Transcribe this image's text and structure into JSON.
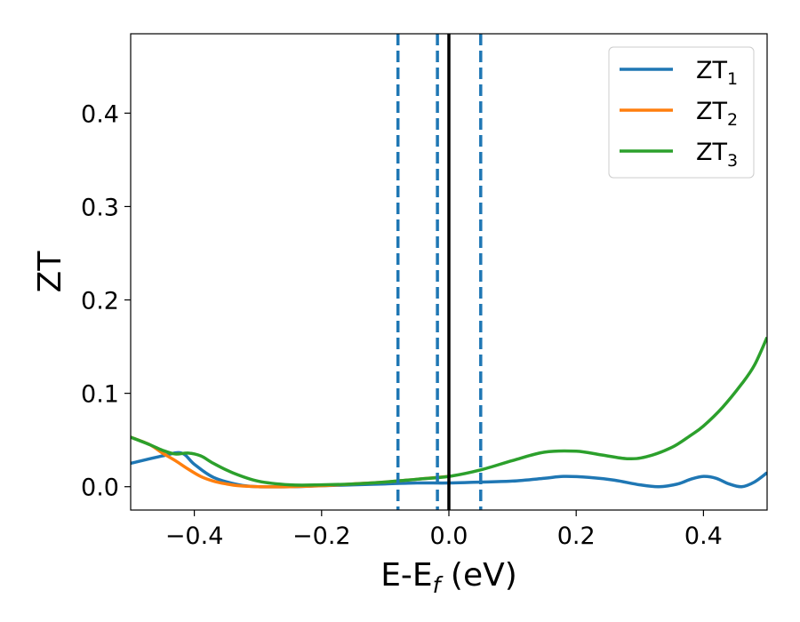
{
  "chart_data": {
    "type": "line",
    "xlabel": {
      "main": "E-E",
      "sub": "f",
      "suffix": " (eV)"
    },
    "ylabel": "ZT",
    "xlim": [
      -0.5,
      0.5
    ],
    "ylim": [
      -0.025,
      0.485
    ],
    "xticks": [
      -0.4,
      -0.2,
      0.0,
      0.2,
      0.4
    ],
    "xtick_labels": [
      "−0.4",
      "−0.2",
      "0.0",
      "0.2",
      "0.4"
    ],
    "yticks": [
      0.0,
      0.1,
      0.2,
      0.3,
      0.4
    ],
    "ytick_labels": [
      "0.0",
      "0.1",
      "0.2",
      "0.3",
      "0.4"
    ],
    "grid": false,
    "legend_position": "top-right",
    "vertical_lines": [
      {
        "x": -0.08,
        "style": "dashed",
        "color": "#1f77b4"
      },
      {
        "x": -0.018,
        "style": "dashed",
        "color": "#1f77b4"
      },
      {
        "x": 0.05,
        "style": "dashed",
        "color": "#1f77b4"
      },
      {
        "x": 0.0,
        "style": "solid",
        "color": "#000000"
      }
    ],
    "series": [
      {
        "name": "ZT",
        "sub": "1",
        "color": "#1f77b4",
        "x": [
          -0.5,
          -0.45,
          -0.42,
          -0.4,
          -0.37,
          -0.33,
          -0.3,
          -0.25,
          -0.2,
          -0.15,
          -0.1,
          -0.05,
          0.0,
          0.05,
          0.1,
          0.15,
          0.18,
          0.22,
          0.26,
          0.3,
          0.33,
          0.36,
          0.38,
          0.4,
          0.42,
          0.44,
          0.46,
          0.48,
          0.5
        ],
        "y": [
          0.025,
          0.033,
          0.036,
          0.024,
          0.01,
          0.002,
          0.0,
          0.0,
          0.001,
          0.002,
          0.003,
          0.004,
          0.004,
          0.005,
          0.006,
          0.009,
          0.011,
          0.01,
          0.007,
          0.002,
          0.0,
          0.003,
          0.008,
          0.011,
          0.009,
          0.003,
          0.0,
          0.005,
          0.015
        ]
      },
      {
        "name": "ZT",
        "sub": "2",
        "color": "#ff7f0e",
        "x": [
          -0.5,
          -0.47,
          -0.45,
          -0.43,
          -0.41,
          -0.39,
          -0.37,
          -0.35,
          -0.33,
          -0.3,
          -0.25,
          -0.2,
          -0.15,
          -0.1,
          -0.05,
          0.0
        ],
        "y": [
          0.053,
          0.045,
          0.036,
          0.028,
          0.019,
          0.011,
          0.006,
          0.003,
          0.001,
          0.0,
          0.0,
          0.001,
          0.003,
          0.005,
          0.008,
          0.011
        ]
      },
      {
        "name": "ZT",
        "sub": "3",
        "color": "#2ca02c",
        "x": [
          -0.5,
          -0.47,
          -0.45,
          -0.43,
          -0.41,
          -0.39,
          -0.37,
          -0.34,
          -0.3,
          -0.25,
          -0.2,
          -0.15,
          -0.1,
          -0.05,
          0.0,
          0.05,
          0.1,
          0.15,
          0.2,
          0.24,
          0.28,
          0.31,
          0.35,
          0.38,
          0.4,
          0.43,
          0.46,
          0.48,
          0.5
        ],
        "y": [
          0.053,
          0.045,
          0.039,
          0.035,
          0.036,
          0.033,
          0.025,
          0.015,
          0.006,
          0.002,
          0.002,
          0.003,
          0.005,
          0.008,
          0.011,
          0.018,
          0.028,
          0.037,
          0.038,
          0.034,
          0.03,
          0.032,
          0.042,
          0.055,
          0.065,
          0.085,
          0.11,
          0.13,
          0.16
        ]
      }
    ]
  }
}
